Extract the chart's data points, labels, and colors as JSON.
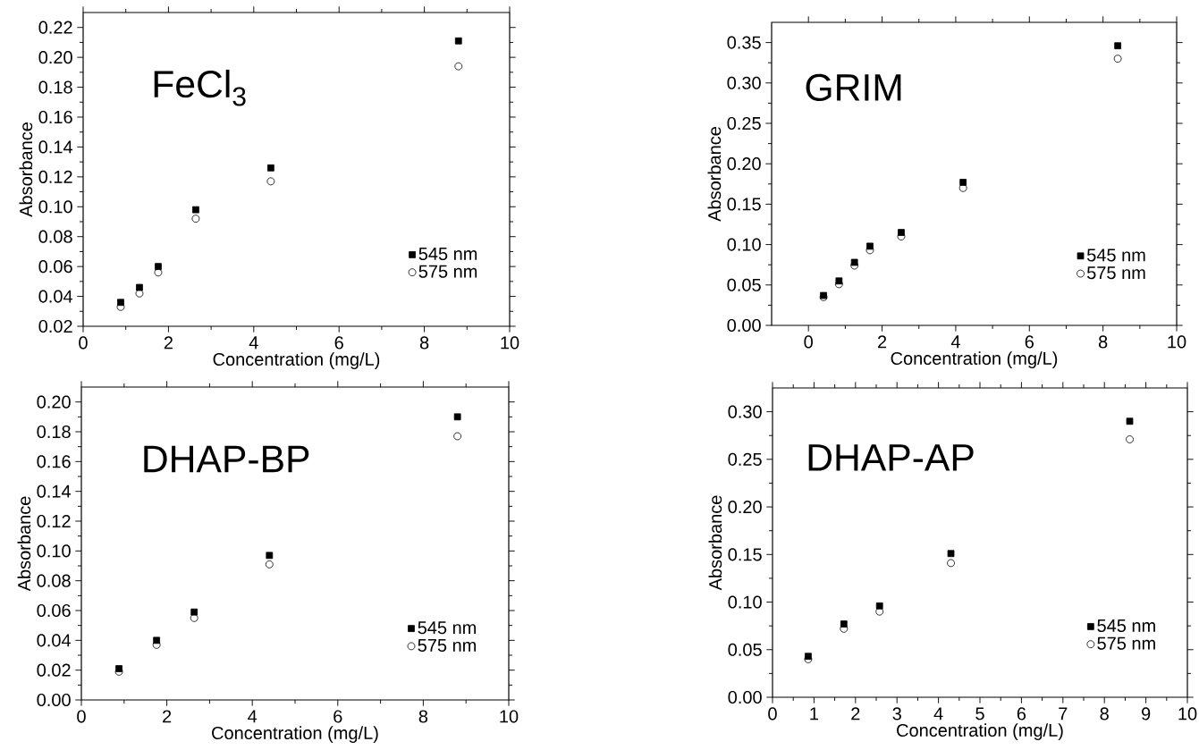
{
  "chart_data": [
    {
      "type": "scatter",
      "title": "FeCl$_{3}$",
      "xlabel": "Concentration (mg/L)",
      "ylabel": "Absorbance",
      "legend": "bottom right",
      "x": [
        0.88,
        1.32,
        1.76,
        2.64,
        4.4,
        8.8
      ],
      "series": [
        {
          "name": "545 nm",
          "color": "#000000",
          "marker": "square",
          "values": [
            0.036,
            0.046,
            0.06,
            0.098,
            0.126,
            0.211
          ]
        },
        {
          "name": "575 nm",
          "color": "#000000",
          "marker": "circle",
          "values": [
            0.033,
            0.042,
            0.056,
            0.092,
            0.117,
            0.194
          ]
        }
      ],
      "xlim": [
        0,
        10
      ],
      "ylim": [
        0.02,
        0.23
      ],
      "xticks": [
        0,
        2,
        4,
        6,
        8,
        10
      ],
      "yticks": [
        {
          "value": 0.02,
          "label": "0.02"
        },
        {
          "value": 0.04,
          "label": "0.04"
        },
        {
          "value": 0.06,
          "label": "0.06"
        },
        {
          "value": 0.08,
          "label": "0.08"
        },
        {
          "value": 0.1,
          "label": "0.10"
        },
        {
          "value": 0.12,
          "label": "0.12"
        },
        {
          "value": 0.14,
          "label": "0.14"
        },
        {
          "value": 0.16,
          "label": "0.16"
        },
        {
          "value": 0.18,
          "label": "0.18"
        },
        {
          "value": 0.2,
          "label": "0.20"
        },
        {
          "value": 0.22,
          "label": "0.22"
        }
      ]
    },
    {
      "type": "scatter",
      "title": "GRIM",
      "xlabel": "Concentration (mg/L)",
      "ylabel": "Absorbance",
      "legend": "bottom right",
      "x": [
        0.41,
        0.83,
        1.25,
        1.67,
        2.52,
        4.2,
        8.4
      ],
      "series": [
        {
          "name": "545 nm",
          "color": "#000000",
          "marker": "square",
          "values": [
            0.037,
            0.055,
            0.078,
            0.098,
            0.115,
            0.177,
            0.346
          ]
        },
        {
          "name": "575 nm",
          "color": "#000000",
          "marker": "circle",
          "values": [
            0.035,
            0.051,
            0.074,
            0.093,
            0.11,
            0.17,
            0.33
          ]
        }
      ],
      "xlim": [
        -1,
        10
      ],
      "ylim": [
        0,
        0.375
      ],
      "xticks": [
        0,
        2,
        4,
        6,
        8,
        10
      ],
      "yticks": [
        {
          "value": 0,
          "label": "0.00"
        },
        {
          "value": 0.05,
          "label": "0.05"
        },
        {
          "value": 0.1,
          "label": "0.10"
        },
        {
          "value": 0.15,
          "label": "0.15"
        },
        {
          "value": 0.2,
          "label": "0.20"
        },
        {
          "value": 0.25,
          "label": "0.25"
        },
        {
          "value": 0.3,
          "label": "0.30"
        },
        {
          "value": 0.35,
          "label": "0.35"
        }
      ]
    },
    {
      "type": "scatter",
      "title": "DHAP-BP",
      "xlabel": "Concentration (mg/L)",
      "ylabel": "Absorbance",
      "legend": "bottom right",
      "x": [
        0.88,
        1.76,
        2.64,
        4.4,
        8.8
      ],
      "series": [
        {
          "name": "545 nm",
          "color": "#000000",
          "marker": "square",
          "values": [
            0.021,
            0.04,
            0.059,
            0.097,
            0.19
          ]
        },
        {
          "name": "575 nm",
          "color": "#000000",
          "marker": "circle",
          "values": [
            0.019,
            0.037,
            0.055,
            0.091,
            0.177
          ]
        }
      ],
      "xlim": [
        0,
        10
      ],
      "ylim": [
        0,
        0.21
      ],
      "xticks": [
        0,
        2,
        4,
        6,
        8,
        10
      ],
      "yticks": [
        {
          "value": 0,
          "label": "0.00"
        },
        {
          "value": 0.02,
          "label": "0.02"
        },
        {
          "value": 0.04,
          "label": "0.04"
        },
        {
          "value": 0.06,
          "label": "0.06"
        },
        {
          "value": 0.08,
          "label": "0.08"
        },
        {
          "value": 0.1,
          "label": "0.10"
        },
        {
          "value": 0.12,
          "label": "0.12"
        },
        {
          "value": 0.14,
          "label": "0.14"
        },
        {
          "value": 0.16,
          "label": "0.16"
        },
        {
          "value": 0.18,
          "label": "0.18"
        },
        {
          "value": 0.2,
          "label": "0.20"
        }
      ]
    },
    {
      "type": "scatter",
      "title": "DHAP-AP",
      "xlabel": "Concentration (mg/L)",
      "ylabel": "Absorbance",
      "legend": "bottom right",
      "x": [
        0.86,
        1.72,
        2.58,
        4.3,
        8.61
      ],
      "series": [
        {
          "name": "545 nm",
          "color": "#000000",
          "marker": "square",
          "values": [
            0.043,
            0.077,
            0.096,
            0.151,
            0.29
          ]
        },
        {
          "name": "575 nm",
          "color": "#000000",
          "marker": "circle",
          "values": [
            0.04,
            0.072,
            0.09,
            0.141,
            0.271
          ]
        }
      ],
      "xlim": [
        0,
        10
      ],
      "ylim": [
        0,
        0.325
      ],
      "xticks": [
        0,
        1,
        2,
        3,
        4,
        5,
        6,
        7,
        8,
        9,
        10
      ],
      "yticks": [
        {
          "value": 0,
          "label": "0.00"
        },
        {
          "value": 0.05,
          "label": "0.05"
        },
        {
          "value": 0.1,
          "label": "0.10"
        },
        {
          "value": 0.15,
          "label": "0.15"
        },
        {
          "value": 0.2,
          "label": "0.20"
        },
        {
          "value": 0.25,
          "label": "0.25"
        },
        {
          "value": 0.3,
          "label": "0.30"
        }
      ]
    }
  ]
}
